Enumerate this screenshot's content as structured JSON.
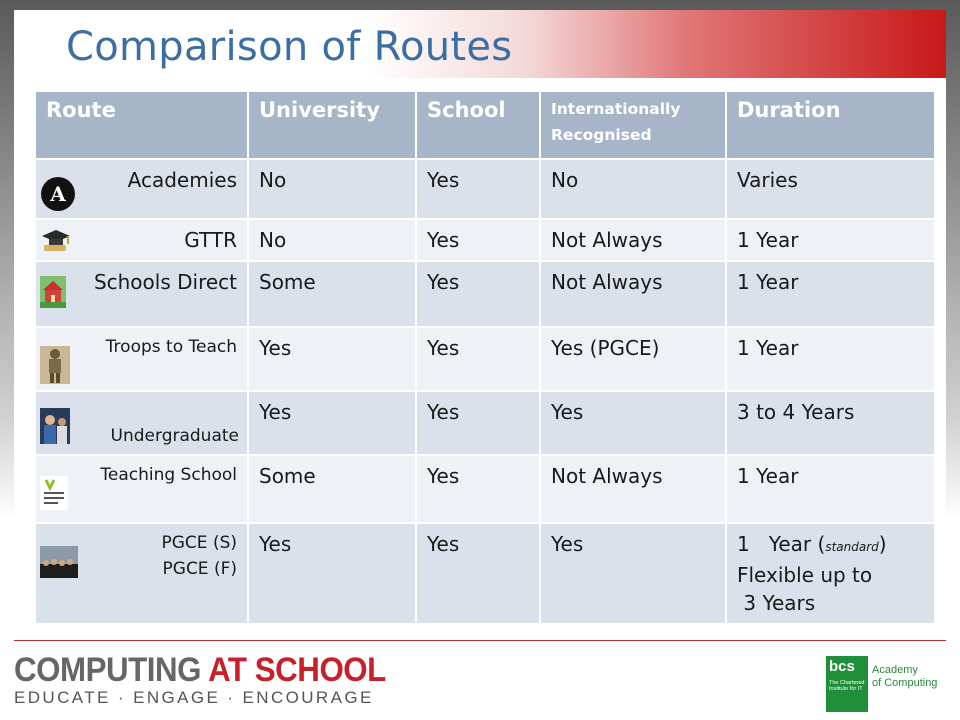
{
  "title": "Comparison of Routes",
  "table": {
    "headers": [
      {
        "key": "route",
        "label": "Route"
      },
      {
        "key": "university",
        "label": "University"
      },
      {
        "key": "school",
        "label": "School"
      },
      {
        "key": "intl",
        "label": "Internationally Recognised"
      },
      {
        "key": "duration",
        "label": "Duration"
      }
    ],
    "rows": [
      {
        "route": "Academies",
        "icon": "academies-logo-icon",
        "university": "No",
        "school": "Yes",
        "intl": "No",
        "duration": "Varies"
      },
      {
        "route": "GTTR",
        "icon": "graduation-cap-icon",
        "university": "No",
        "school": "Yes",
        "intl": "Not Always",
        "duration": "1 Year"
      },
      {
        "route": "Schools Direct",
        "icon": "school-building-icon",
        "university": "Some",
        "school": "Yes",
        "intl": "Not Always",
        "duration": "1 Year"
      },
      {
        "route": "Troops to Teach",
        "icon": "soldier-photo-icon",
        "university": "Yes",
        "school": "Yes",
        "intl": "Yes (PGCE)",
        "duration": "1 Year"
      },
      {
        "route": "Undergraduate",
        "icon": "students-photo-icon",
        "university": "Yes",
        "school": "Yes",
        "intl": "Yes",
        "duration": "3 to 4 Years"
      },
      {
        "route": "Teaching School",
        "icon": "national-teaching-school-logo-icon",
        "university": "Some",
        "school": "Yes",
        "intl": "Not Always",
        "duration": "1 Year"
      },
      {
        "route_line1": "PGCE (S)",
        "route_line2": "PGCE (F)",
        "icon": "group-photo-icon",
        "university": "Yes",
        "school": "Yes",
        "intl": "Yes",
        "duration_line1": "1   Year (",
        "duration_note": "standard",
        "duration_close": ")",
        "duration_line2": "Flexible up to",
        "duration_line3": " 3 Years"
      }
    ]
  },
  "footer": {
    "cas_word1": "COMPUTING",
    "cas_word2": "AT SCHOOL",
    "cas_tagline": "EDUCATE · ENGAGE · ENCOURAGE",
    "bcs_mark": "bcs",
    "bcs_tagline": "The Chartered Institute for IT",
    "bcs_line1": "Academy",
    "bcs_line2": "of Computing"
  },
  "colors": {
    "title": "#3b6ea3",
    "header_bg": "#a6b6c8",
    "row_odd": "#dbe1ea",
    "row_even": "#eef1f5",
    "cas_red": "#c8202a",
    "bcs_green": "#1f8f3a"
  }
}
